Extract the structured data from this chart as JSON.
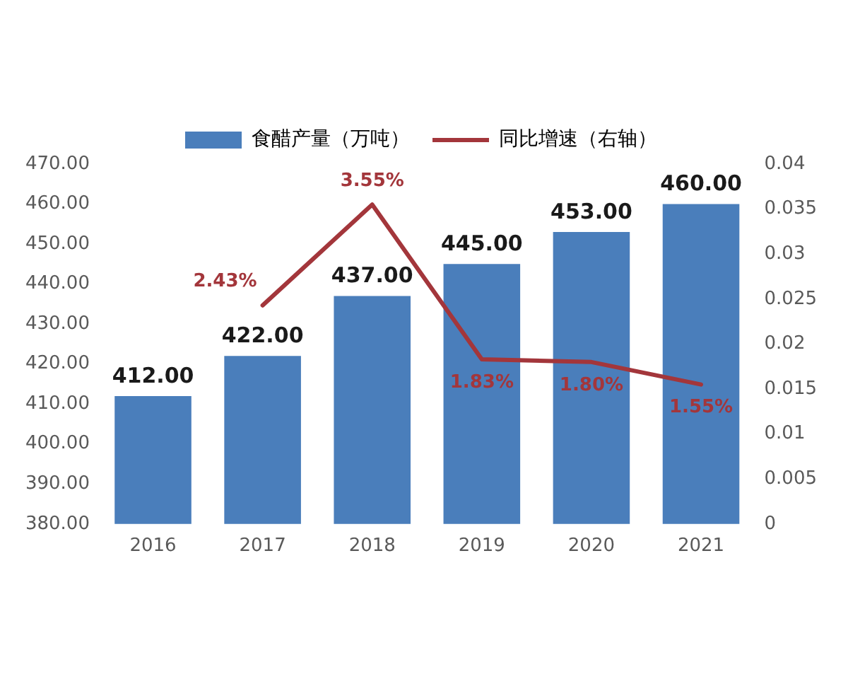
{
  "chart_data": {
    "type": "bar",
    "categories": [
      "2016",
      "2017",
      "2018",
      "2019",
      "2020",
      "2021"
    ],
    "series": [
      {
        "name": "食醋产量（万吨）",
        "color": "#4a7ebb",
        "values": [
          412,
          422,
          437,
          445,
          453,
          460
        ],
        "value_labels": [
          "412.00",
          "422.00",
          "437.00",
          "445.00",
          "453.00",
          "460.00"
        ]
      },
      {
        "name": "同比增速（右轴）",
        "type": "line",
        "axis": "y2",
        "color": "#a3363b",
        "values": [
          null,
          0.0243,
          0.0355,
          0.0183,
          0.018,
          0.0155
        ],
        "value_labels": [
          null,
          "2.43%",
          "3.55%",
          "1.83%",
          "1.80%",
          "1.55%"
        ]
      }
    ],
    "ylim": [
      380,
      470
    ],
    "yticks": [
      {
        "value": 380,
        "label": "380.00"
      },
      {
        "value": 390,
        "label": "390.00"
      },
      {
        "value": 400,
        "label": "400.00"
      },
      {
        "value": 410,
        "label": "410.00"
      },
      {
        "value": 420,
        "label": "420.00"
      },
      {
        "value": 430,
        "label": "430.00"
      },
      {
        "value": 440,
        "label": "440.00"
      },
      {
        "value": 450,
        "label": "450.00"
      },
      {
        "value": 460,
        "label": "460.00"
      },
      {
        "value": 470,
        "label": "470.00"
      }
    ],
    "y2lim": [
      0,
      0.04
    ],
    "y2ticks": [
      0,
      0.005,
      0.01,
      0.015,
      0.02,
      0.025,
      0.03,
      0.035,
      0.04
    ],
    "legend": "top",
    "grid": false,
    "marker": "none"
  }
}
